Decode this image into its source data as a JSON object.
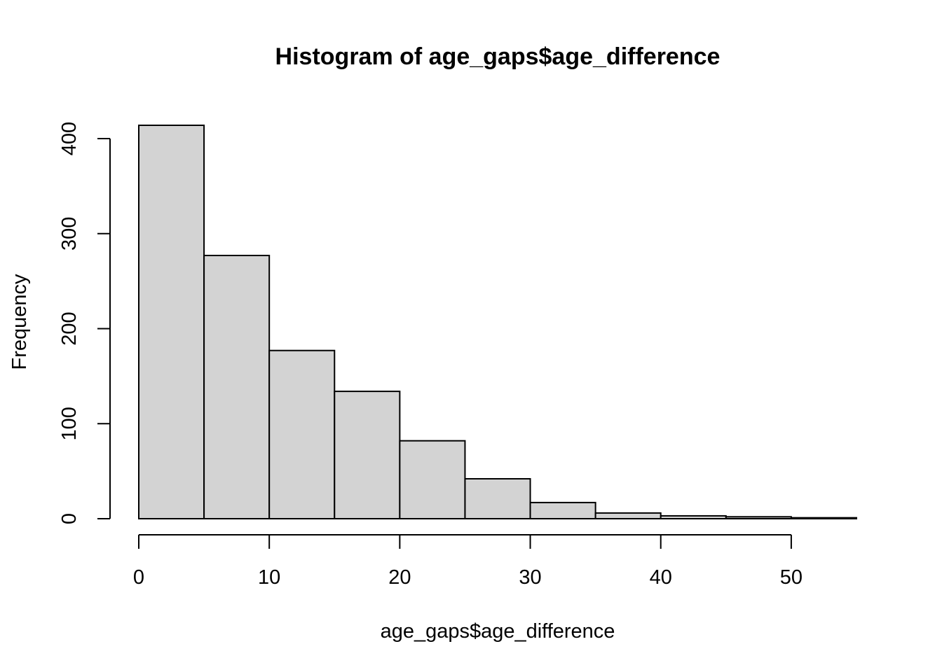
{
  "chart_data": {
    "type": "bar",
    "title": "Histogram of age_gaps$age_difference",
    "xlabel": "age_gaps$age_difference",
    "ylabel": "Frequency",
    "bins": [
      {
        "x0": 0,
        "x1": 5,
        "count": 414
      },
      {
        "x0": 5,
        "x1": 10,
        "count": 277
      },
      {
        "x0": 10,
        "x1": 15,
        "count": 177
      },
      {
        "x0": 15,
        "x1": 20,
        "count": 134
      },
      {
        "x0": 20,
        "x1": 25,
        "count": 82
      },
      {
        "x0": 25,
        "x1": 30,
        "count": 42
      },
      {
        "x0": 30,
        "x1": 35,
        "count": 17
      },
      {
        "x0": 35,
        "x1": 40,
        "count": 6
      },
      {
        "x0": 40,
        "x1": 45,
        "count": 3
      },
      {
        "x0": 45,
        "x1": 50,
        "count": 2
      },
      {
        "x0": 50,
        "x1": 55,
        "count": 1
      }
    ],
    "xlim": [
      0,
      55
    ],
    "ylim": [
      0,
      414
    ],
    "xticks": [
      0,
      10,
      20,
      30,
      40,
      50
    ],
    "yticks": [
      0,
      100,
      200,
      300,
      400
    ],
    "bar_color": "#d3d3d3",
    "grid": false,
    "legend": "none"
  }
}
